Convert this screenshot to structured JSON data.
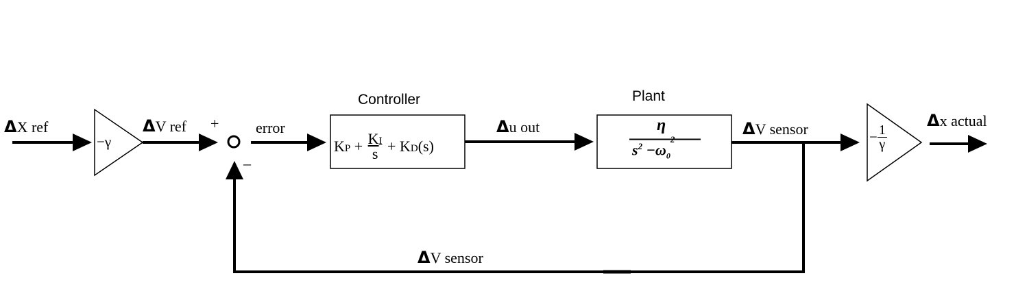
{
  "signals": {
    "x_ref": {
      "symbol": "Δ",
      "text": "X ref"
    },
    "v_ref": {
      "symbol": "Δ",
      "text": "V ref"
    },
    "error": "error",
    "u_out": {
      "symbol": "Δ",
      "text": "u out"
    },
    "v_sensor_forward": {
      "symbol": "Δ",
      "text": "V sensor"
    },
    "v_sensor_feedback": {
      "symbol": "Δ",
      "text": "V sensor"
    },
    "x_actual": {
      "symbol": "Δ",
      "text": "x actual"
    }
  },
  "summing_junction": {
    "plus": "+",
    "minus": "–"
  },
  "gain_in": {
    "text": "−γ"
  },
  "gain_out": {
    "sign": "−",
    "num": "1",
    "den": "γ"
  },
  "controller": {
    "title": "Controller",
    "kp": "K",
    "kp_sub": "P",
    "plus1": "+",
    "ki": "K",
    "ki_sub": "I",
    "ki_den": "s",
    "plus2": "+",
    "kd": "K",
    "kd_sub": "D",
    "kd_tail": "(s)"
  },
  "plant": {
    "title": "Plant",
    "num": "η",
    "den_s": "s",
    "den_s_exp": "2",
    "den_minus": "−",
    "den_w": "ω",
    "den_w_sub": "0",
    "den_w_exp": "2"
  },
  "colors": {
    "line": "#000000",
    "background": "#ffffff"
  }
}
